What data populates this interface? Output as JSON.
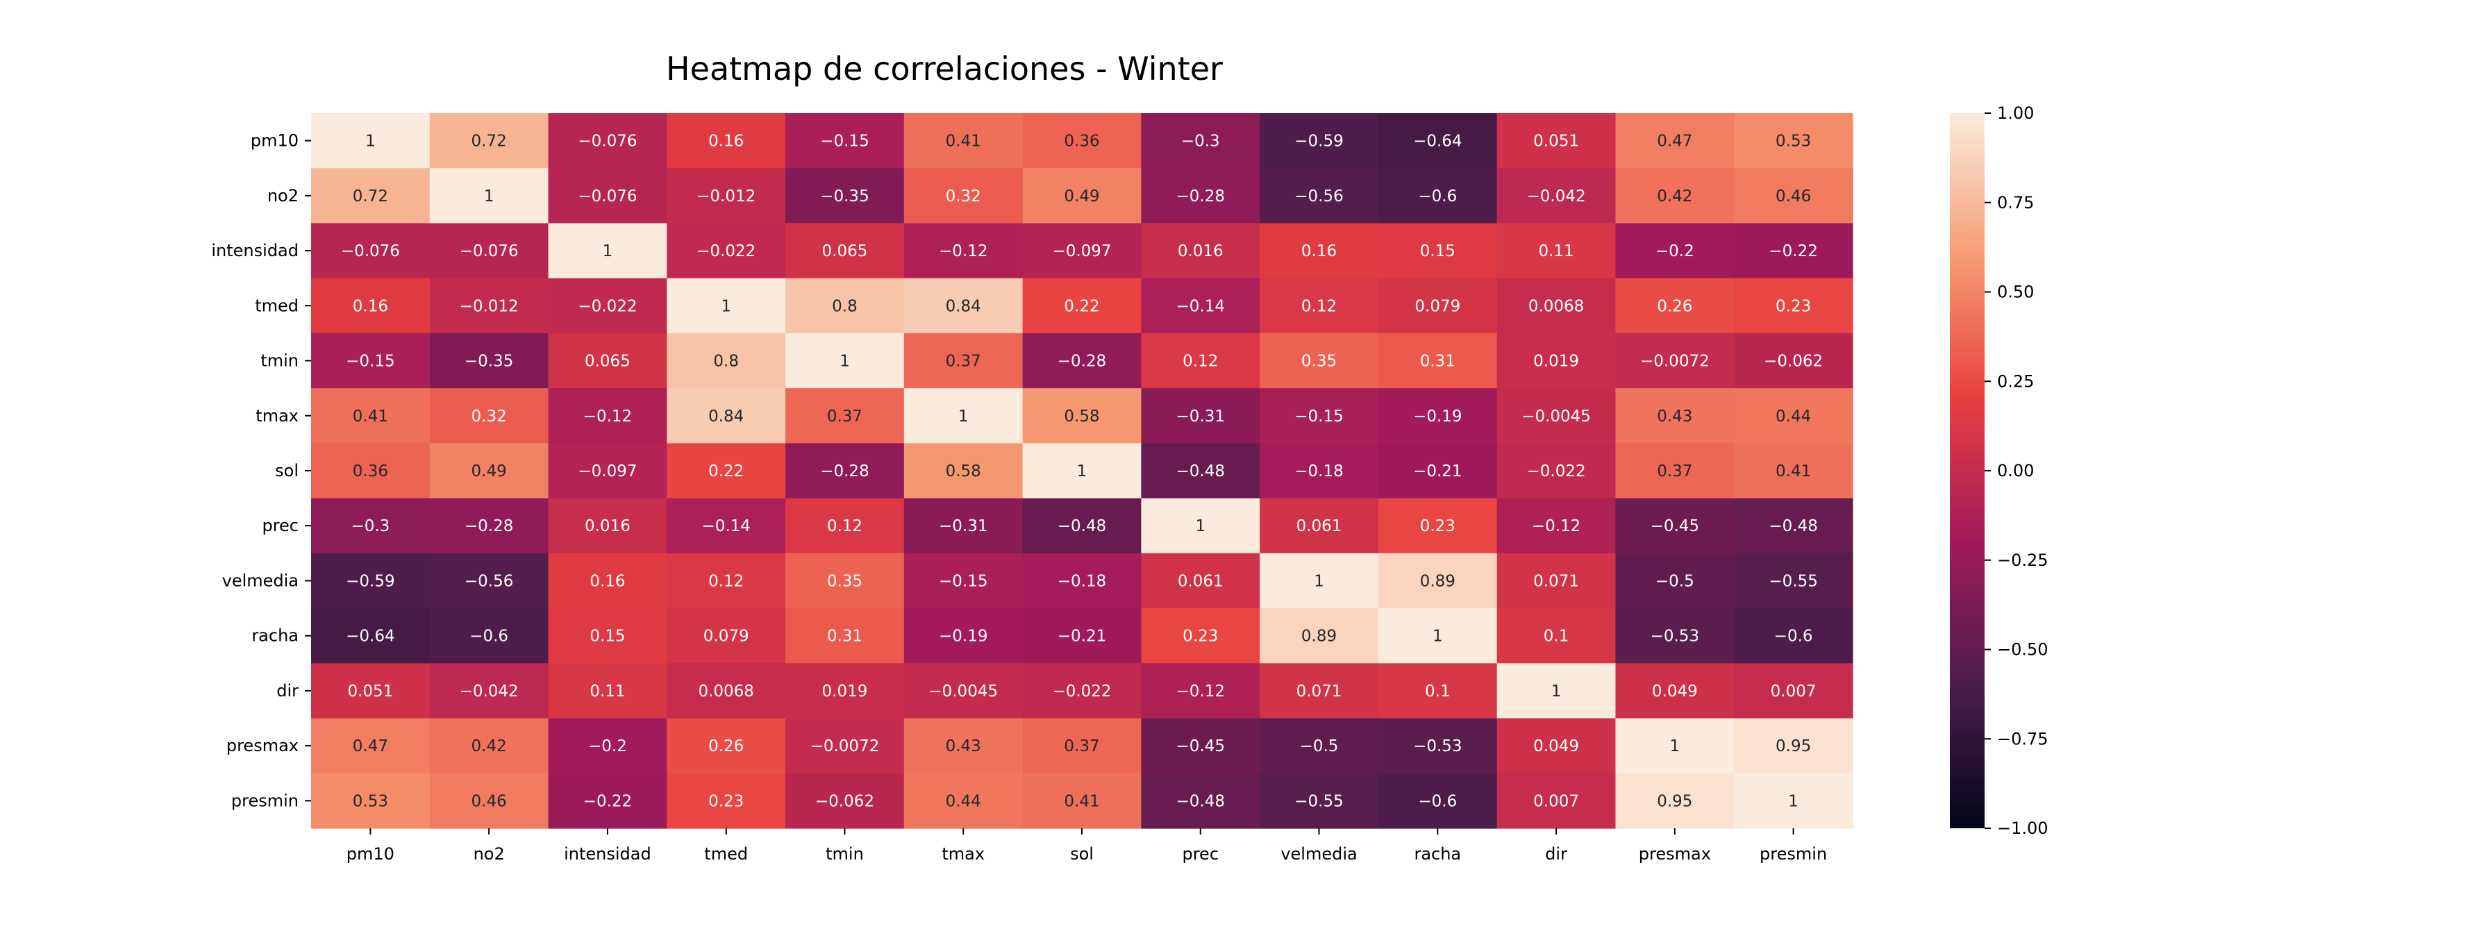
{
  "chart_data": {
    "type": "heatmap",
    "title": "Heatmap de correlaciones - Winter",
    "xlabel": "",
    "ylabel": "",
    "rows": [
      "pm10",
      "no2",
      "intensidad",
      "tmed",
      "tmin",
      "tmax",
      "sol",
      "prec",
      "velmedia",
      "racha",
      "dir",
      "presmax",
      "presmin"
    ],
    "columns": [
      "pm10",
      "no2",
      "intensidad",
      "tmed",
      "tmin",
      "tmax",
      "sol",
      "prec",
      "velmedia",
      "racha",
      "dir",
      "presmax",
      "presmin"
    ],
    "values": [
      [
        1,
        0.72,
        -0.076,
        0.16,
        -0.15,
        0.41,
        0.36,
        -0.3,
        -0.59,
        -0.64,
        0.051,
        0.47,
        0.53
      ],
      [
        0.72,
        1,
        -0.076,
        -0.012,
        -0.35,
        0.32,
        0.49,
        -0.28,
        -0.56,
        -0.6,
        -0.042,
        0.42,
        0.46
      ],
      [
        -0.076,
        -0.076,
        1,
        -0.022,
        0.065,
        -0.12,
        -0.097,
        0.016,
        0.16,
        0.15,
        0.11,
        -0.2,
        -0.22
      ],
      [
        0.16,
        -0.012,
        -0.022,
        1,
        0.8,
        0.84,
        0.22,
        -0.14,
        0.12,
        0.079,
        0.0068,
        0.26,
        0.23
      ],
      [
        -0.15,
        -0.35,
        0.065,
        0.8,
        1,
        0.37,
        -0.28,
        0.12,
        0.35,
        0.31,
        0.019,
        -0.0072,
        -0.062
      ],
      [
        0.41,
        0.32,
        -0.12,
        0.84,
        0.37,
        1,
        0.58,
        -0.31,
        -0.15,
        -0.19,
        -0.0045,
        0.43,
        0.44
      ],
      [
        0.36,
        0.49,
        -0.097,
        0.22,
        -0.28,
        0.58,
        1,
        -0.48,
        -0.18,
        -0.21,
        -0.022,
        0.37,
        0.41
      ],
      [
        -0.3,
        -0.28,
        0.016,
        -0.14,
        0.12,
        -0.31,
        -0.48,
        1,
        0.061,
        0.23,
        -0.12,
        -0.45,
        -0.48
      ],
      [
        -0.59,
        -0.56,
        0.16,
        0.12,
        0.35,
        -0.15,
        -0.18,
        0.061,
        1,
        0.89,
        0.071,
        -0.5,
        -0.55
      ],
      [
        -0.64,
        -0.6,
        0.15,
        0.079,
        0.31,
        -0.19,
        -0.21,
        0.23,
        0.89,
        1,
        0.1,
        -0.53,
        -0.6
      ],
      [
        0.051,
        -0.042,
        0.11,
        0.0068,
        0.019,
        -0.0045,
        -0.022,
        -0.12,
        0.071,
        0.1,
        1,
        0.049,
        0.007
      ],
      [
        0.47,
        0.42,
        -0.2,
        0.26,
        -0.0072,
        0.43,
        0.37,
        -0.45,
        -0.5,
        -0.53,
        0.049,
        1,
        0.95
      ],
      [
        0.53,
        0.46,
        -0.22,
        0.23,
        -0.062,
        0.44,
        0.41,
        -0.48,
        -0.55,
        -0.6,
        0.007,
        0.95,
        1
      ]
    ],
    "colorbar": {
      "vmin": -1.0,
      "vmax": 1.0,
      "ticks": [
        1.0,
        0.75,
        0.5,
        0.25,
        0.0,
        -0.25,
        -0.5,
        -0.75,
        -1.0
      ],
      "tick_labels": [
        "1.00",
        "0.75",
        "0.50",
        "0.25",
        "0.00",
        "−0.25",
        "−0.50",
        "−0.75",
        "−1.00"
      ],
      "colormap": "rocket",
      "colormap_stops": [
        "#03051a",
        "#4c1d4b",
        "#a11a5b",
        "#e83f3f",
        "#f69c73",
        "#faebdd"
      ]
    }
  }
}
